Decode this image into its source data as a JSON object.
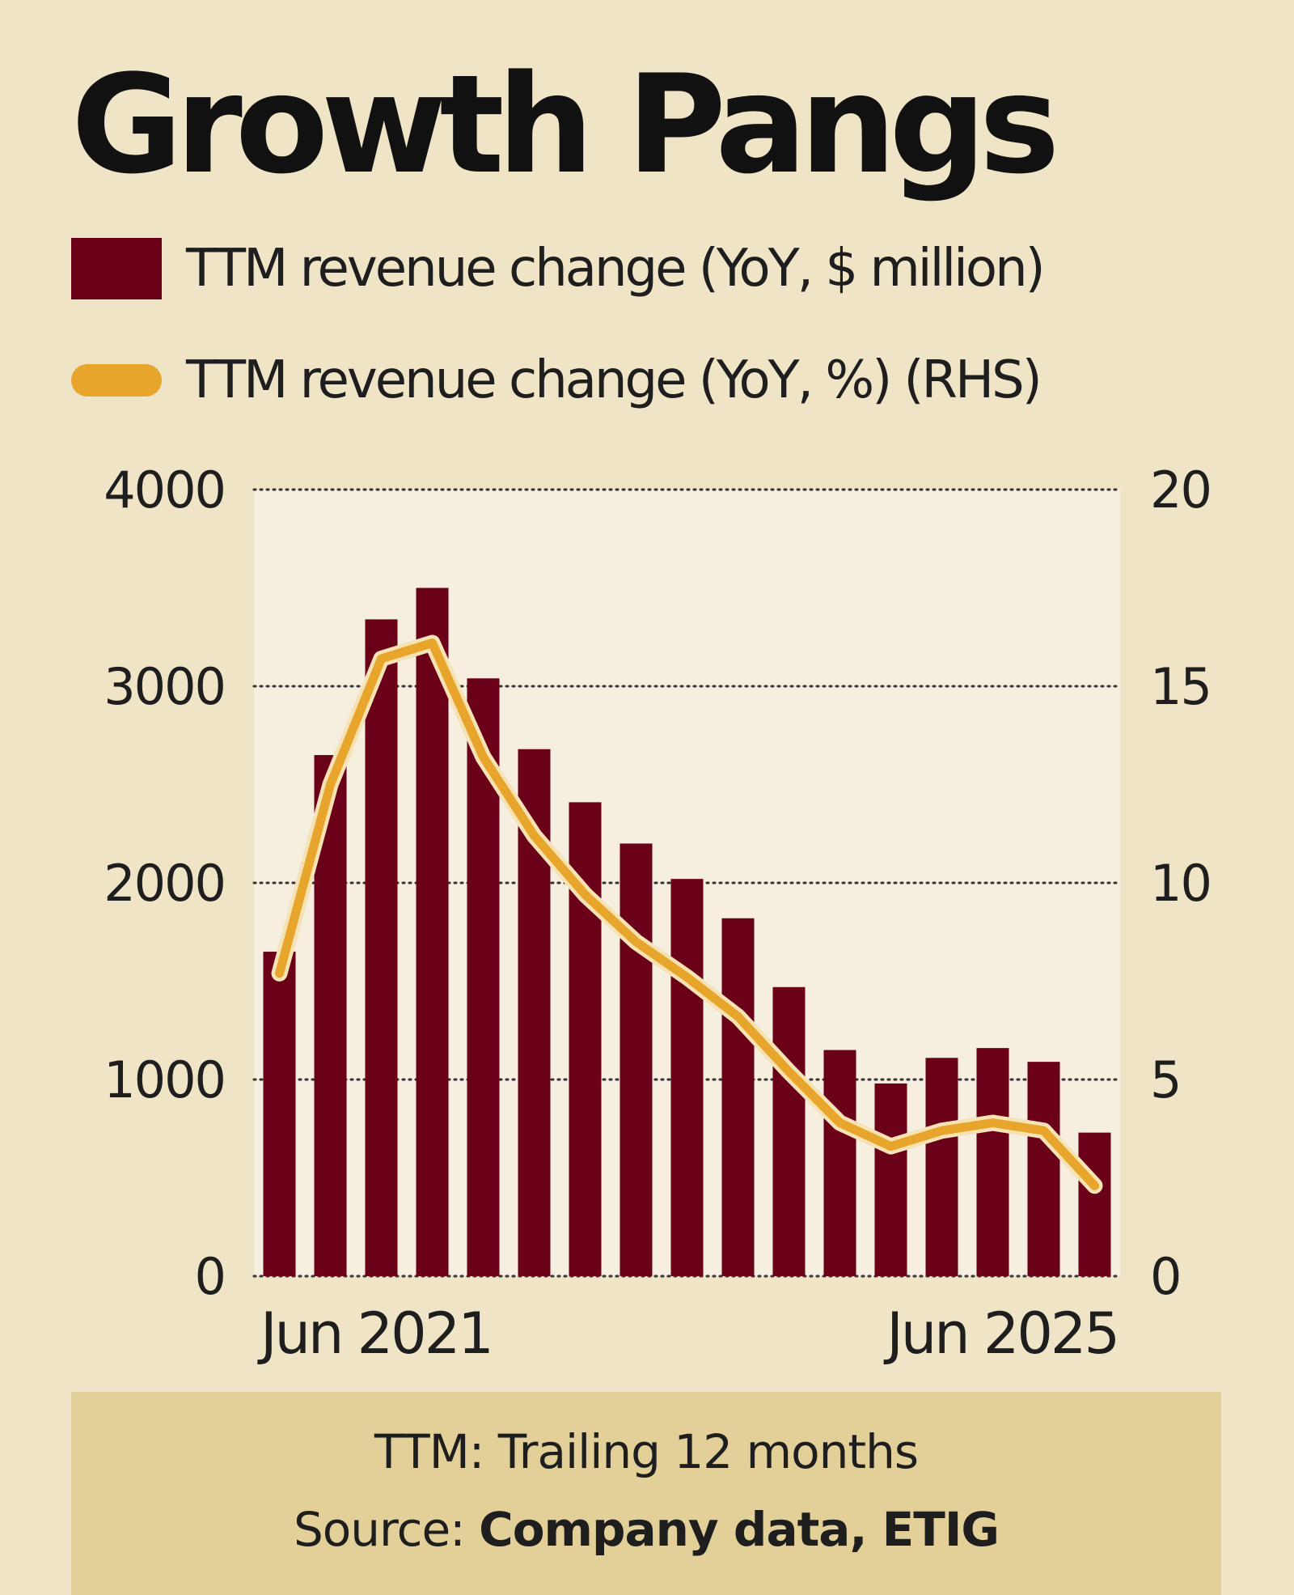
{
  "title": "Growth Pangs",
  "legend": {
    "bar_label": "TTM revenue change (YoY, $ million)",
    "line_label": "TTM revenue change (YoY, %) (RHS)"
  },
  "footer": {
    "note": "TTM: Trailing 12 months",
    "source_prefix": "Source: ",
    "source_value": "Company data, ETIG"
  },
  "colors": {
    "background": "#efe4c6",
    "plot_area": "#f6efdf",
    "bar": "#6b0019",
    "line": "#e8a52c",
    "line_outline": "#f6e3b5",
    "footer_bg": "#e3cf98"
  },
  "chart_data": {
    "type": "bar",
    "title": "Growth Pangs",
    "categories": [
      "Jun 2021",
      "",
      "",
      "",
      "",
      "",
      "",
      "",
      "",
      "",
      "",
      "",
      "",
      "",
      "",
      "",
      "Jun 2025"
    ],
    "x_tick_labels": [
      "Jun 2021",
      "Jun 2025"
    ],
    "series": [
      {
        "name": "TTM revenue change (YoY, $ million)",
        "type": "bar",
        "axis": "left",
        "values": [
          1650,
          2650,
          3340,
          3500,
          3040,
          2680,
          2410,
          2200,
          2020,
          1820,
          1470,
          1150,
          980,
          1110,
          1160,
          1090,
          730
        ]
      },
      {
        "name": "TTM revenue change (YoY, %) (RHS)",
        "type": "line",
        "axis": "right",
        "values": [
          7.7,
          12.5,
          15.7,
          16.1,
          13.2,
          11.2,
          9.7,
          8.5,
          7.6,
          6.6,
          5.2,
          3.9,
          3.3,
          3.7,
          3.9,
          3.7,
          2.3
        ]
      }
    ],
    "ylim": [
      0,
      4000
    ],
    "yticks": [
      0,
      1000,
      2000,
      3000,
      4000
    ],
    "y2lim": [
      0,
      20
    ],
    "y2ticks": [
      0,
      5,
      10,
      15,
      20
    ],
    "grid": true,
    "legend_position": "top",
    "xlabel": "",
    "ylabel": ""
  }
}
